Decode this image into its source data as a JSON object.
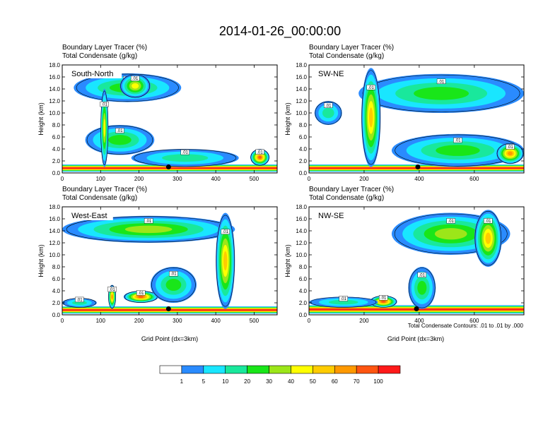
{
  "title": "2014-01-26_00:00:00",
  "panel_title_line1": "Boundary Layer Tracer   (%)",
  "panel_title_line2": "Total Condensate   (g/kg)",
  "ylabel": "Height (km)",
  "xlabel": "Grid Point (dx=3km)",
  "contour_note": "Total Condensate Contours: .01 to .01 by .000",
  "contour_label": ".01",
  "colors": [
    "#ffffff",
    "#2a8bff",
    "#19e6ff",
    "#19e89c",
    "#19e619",
    "#9ce619",
    "#ffff00",
    "#ffcc00",
    "#ff9900",
    "#ff5511",
    "#ff1a1a"
  ],
  "colorbar_labels": [
    "1",
    "5",
    "10",
    "20",
    "30",
    "40",
    "50",
    "60",
    "70",
    "100"
  ],
  "chart_data": [
    {
      "type": "heatmap",
      "name": "South-North",
      "ylim": [
        0,
        18
      ],
      "xlim": [
        0,
        560
      ],
      "xticks": [
        "0",
        "100",
        "200",
        "300",
        "400",
        "500"
      ],
      "yticks": [
        "0.0",
        "2.0",
        "4.0",
        "6.0",
        "8.0",
        "10.0",
        "12.0",
        "14.0",
        "16.0",
        "18.0"
      ],
      "marker": {
        "x": 277,
        "y": 1.0
      },
      "features": [
        {
          "x": [
            0,
            560
          ],
          "y": [
            0.2,
            1.4
          ],
          "value": 100
        },
        {
          "x": [
            30,
            310
          ],
          "y": [
            11.8,
            16.6
          ],
          "value": 20
        },
        {
          "x": [
            150,
            230
          ],
          "y": [
            12.5,
            16.5
          ],
          "value": 40
        },
        {
          "x": [
            60,
            240
          ],
          "y": [
            3.0,
            8.0
          ],
          "value": 20
        },
        {
          "x": [
            100,
            120
          ],
          "y": [
            1.0,
            14.0
          ],
          "value": 40
        },
        {
          "x": [
            180,
            460
          ],
          "y": [
            1.0,
            4.0
          ],
          "value": 10
        },
        {
          "x": [
            490,
            540
          ],
          "y": [
            1.2,
            4.0
          ],
          "value": 70
        }
      ]
    },
    {
      "type": "heatmap",
      "name": "SW-NE",
      "ylim": [
        0,
        18
      ],
      "xlim": [
        0,
        780
      ],
      "xticks": [
        "0",
        "200",
        "400",
        "600"
      ],
      "yticks": [
        "0.0",
        "2.0",
        "4.0",
        "6.0",
        "8.0",
        "10.0",
        "12.0",
        "14.0",
        "16.0",
        "18.0"
      ],
      "marker": {
        "x": 395,
        "y": 1.0
      },
      "features": [
        {
          "x": [
            0,
            780
          ],
          "y": [
            0.2,
            1.4
          ],
          "value": 100
        },
        {
          "x": [
            180,
            780
          ],
          "y": [
            10.0,
            16.5
          ],
          "value": 20
        },
        {
          "x": [
            190,
            260
          ],
          "y": [
            1.0,
            17.5
          ],
          "value": 50
        },
        {
          "x": [
            300,
            780
          ],
          "y": [
            1.0,
            6.5
          ],
          "value": 20
        },
        {
          "x": [
            680,
            780
          ],
          "y": [
            1.5,
            5.0
          ],
          "value": 60
        },
        {
          "x": [
            20,
            120
          ],
          "y": [
            8.0,
            12.0
          ],
          "value": 10
        }
      ]
    },
    {
      "type": "heatmap",
      "name": "West-East",
      "ylim": [
        0,
        18
      ],
      "xlim": [
        0,
        560
      ],
      "xticks": [
        "0",
        "100",
        "200",
        "300",
        "400",
        "500"
      ],
      "yticks": [
        "0.0",
        "2.0",
        "4.0",
        "6.0",
        "8.0",
        "10.0",
        "12.0",
        "14.0",
        "16.0",
        "18.0"
      ],
      "marker": {
        "x": 277,
        "y": 1.0
      },
      "features": [
        {
          "x": [
            0,
            560
          ],
          "y": [
            0.2,
            1.4
          ],
          "value": 100
        },
        {
          "x": [
            0,
            450
          ],
          "y": [
            12.0,
            16.5
          ],
          "value": 30
        },
        {
          "x": [
            400,
            450
          ],
          "y": [
            1.0,
            17.0
          ],
          "value": 50
        },
        {
          "x": [
            160,
            250
          ],
          "y": [
            2.0,
            4.0
          ],
          "value": 70
        },
        {
          "x": [
            120,
            140
          ],
          "y": [
            1.0,
            5.0
          ],
          "value": 60
        },
        {
          "x": [
            230,
            350
          ],
          "y": [
            2.0,
            8.0
          ],
          "value": 20
        },
        {
          "x": [
            0,
            90
          ],
          "y": [
            1.2,
            2.8
          ],
          "value": 10
        }
      ]
    },
    {
      "type": "heatmap",
      "name": "NW-SE",
      "ylim": [
        0,
        18
      ],
      "xlim": [
        0,
        780
      ],
      "xticks": [
        "0",
        "200",
        "400",
        "600"
      ],
      "yticks": [
        "0.0",
        "2.0",
        "4.0",
        "6.0",
        "8.0",
        "10.0",
        "12.0",
        "14.0",
        "16.0",
        "18.0"
      ],
      "marker": {
        "x": 390,
        "y": 1.0
      },
      "features": [
        {
          "x": [
            0,
            780
          ],
          "y": [
            0.2,
            1.6
          ],
          "value": 100
        },
        {
          "x": [
            220,
            320
          ],
          "y": [
            1.2,
            3.2
          ],
          "value": 70
        },
        {
          "x": [
            300,
            730
          ],
          "y": [
            10.0,
            17.0
          ],
          "value": 30
        },
        {
          "x": [
            600,
            700
          ],
          "y": [
            8.0,
            17.5
          ],
          "value": 50
        },
        {
          "x": [
            360,
            460
          ],
          "y": [
            1.0,
            8.0
          ],
          "value": 20
        },
        {
          "x": [
            0,
            250
          ],
          "y": [
            1.2,
            3.0
          ],
          "value": 10
        }
      ]
    }
  ]
}
